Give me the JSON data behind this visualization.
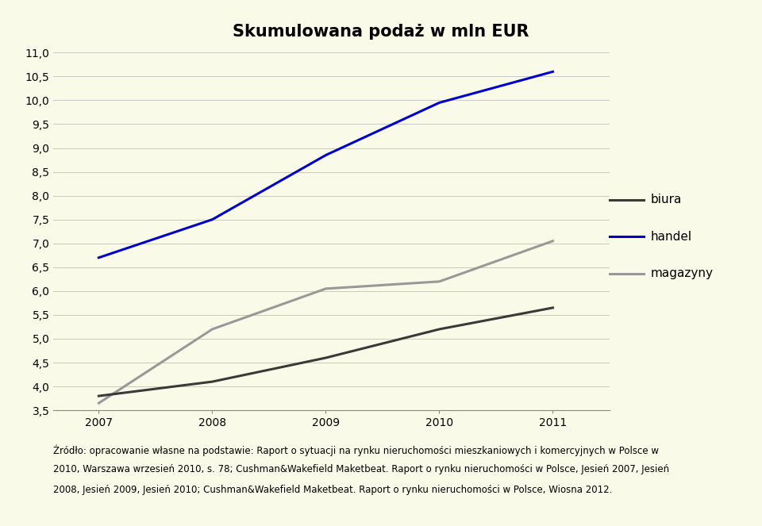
{
  "title": "Skumulowana podaż w mln EUR",
  "years": [
    2007,
    2008,
    2009,
    2010,
    2011
  ],
  "biura": [
    3.8,
    4.1,
    4.6,
    5.2,
    5.65
  ],
  "handel": [
    6.7,
    7.5,
    8.85,
    9.95,
    10.6
  ],
  "magazyny": [
    3.65,
    5.2,
    6.05,
    6.2,
    7.05
  ],
  "biura_color": "#3a3a3a",
  "handel_color": "#0000cc",
  "magazyny_color": "#999999",
  "ylim_min": 3.5,
  "ylim_max": 11.0,
  "yticks": [
    3.5,
    4.0,
    4.5,
    5.0,
    5.5,
    6.0,
    6.5,
    7.0,
    7.5,
    8.0,
    8.5,
    9.0,
    9.5,
    10.0,
    10.5,
    11.0
  ],
  "ytick_labels": [
    "3,5",
    "4,0",
    "4,5",
    "5,0",
    "5,5",
    "6,0",
    "6,5",
    "7,0",
    "7,5",
    "8,0",
    "8,5",
    "9,0",
    "9,5",
    "10,0",
    "10,5",
    "11,0"
  ],
  "background_color": "#fafae8",
  "legend_labels": [
    "biura",
    "handel",
    "magazyny"
  ],
  "line_width": 2.2,
  "footer_line1": "Źródło: opracowanie własne na podstawie: Raport o sytuacji na rynku nieruchomości mieszkaniowych i komercyjnych w Polsce w",
  "footer_line2": "2010, Warszawa wrzesień 2010, s. 78; Cushman&Wakefield Maketbeat. Raport o rynku nieruchomości w Polsce, Jesień 2007, Jesień",
  "footer_line3": "2008, Jesień 2009, Jesień 2010; Cushman&Wakefield Maketbeat. Raport o rynku nieruchomości w Polsce, Wiosna 2012.",
  "title_fontsize": 15,
  "tick_fontsize": 10,
  "legend_fontsize": 11,
  "footer_fontsize": 8.5
}
